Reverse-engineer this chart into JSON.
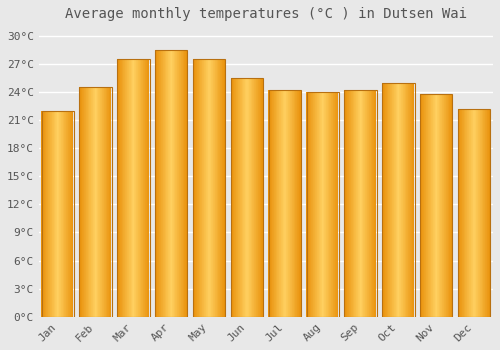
{
  "title": "Average monthly temperatures (°C ) in Dutsen Wai",
  "months": [
    "Jan",
    "Feb",
    "Mar",
    "Apr",
    "May",
    "Jun",
    "Jul",
    "Aug",
    "Sep",
    "Oct",
    "Nov",
    "Dec"
  ],
  "values": [
    22.0,
    24.5,
    27.5,
    28.5,
    27.5,
    25.5,
    24.2,
    24.0,
    24.2,
    25.0,
    23.8,
    22.2
  ],
  "bar_color_light": "#FFD060",
  "bar_color_dark": "#E8900A",
  "bar_edge_color": "#B87010",
  "background_color": "#E8E8E8",
  "grid_color": "#FFFFFF",
  "text_color": "#555555",
  "ylim": [
    0,
    31
  ],
  "yticks": [
    0,
    3,
    6,
    9,
    12,
    15,
    18,
    21,
    24,
    27,
    30
  ],
  "ytick_labels": [
    "0°C",
    "3°C",
    "6°C",
    "9°C",
    "12°C",
    "15°C",
    "18°C",
    "21°C",
    "24°C",
    "27°C",
    "30°C"
  ],
  "title_fontsize": 10,
  "tick_fontsize": 8,
  "font_family": "monospace",
  "bar_width": 0.85
}
